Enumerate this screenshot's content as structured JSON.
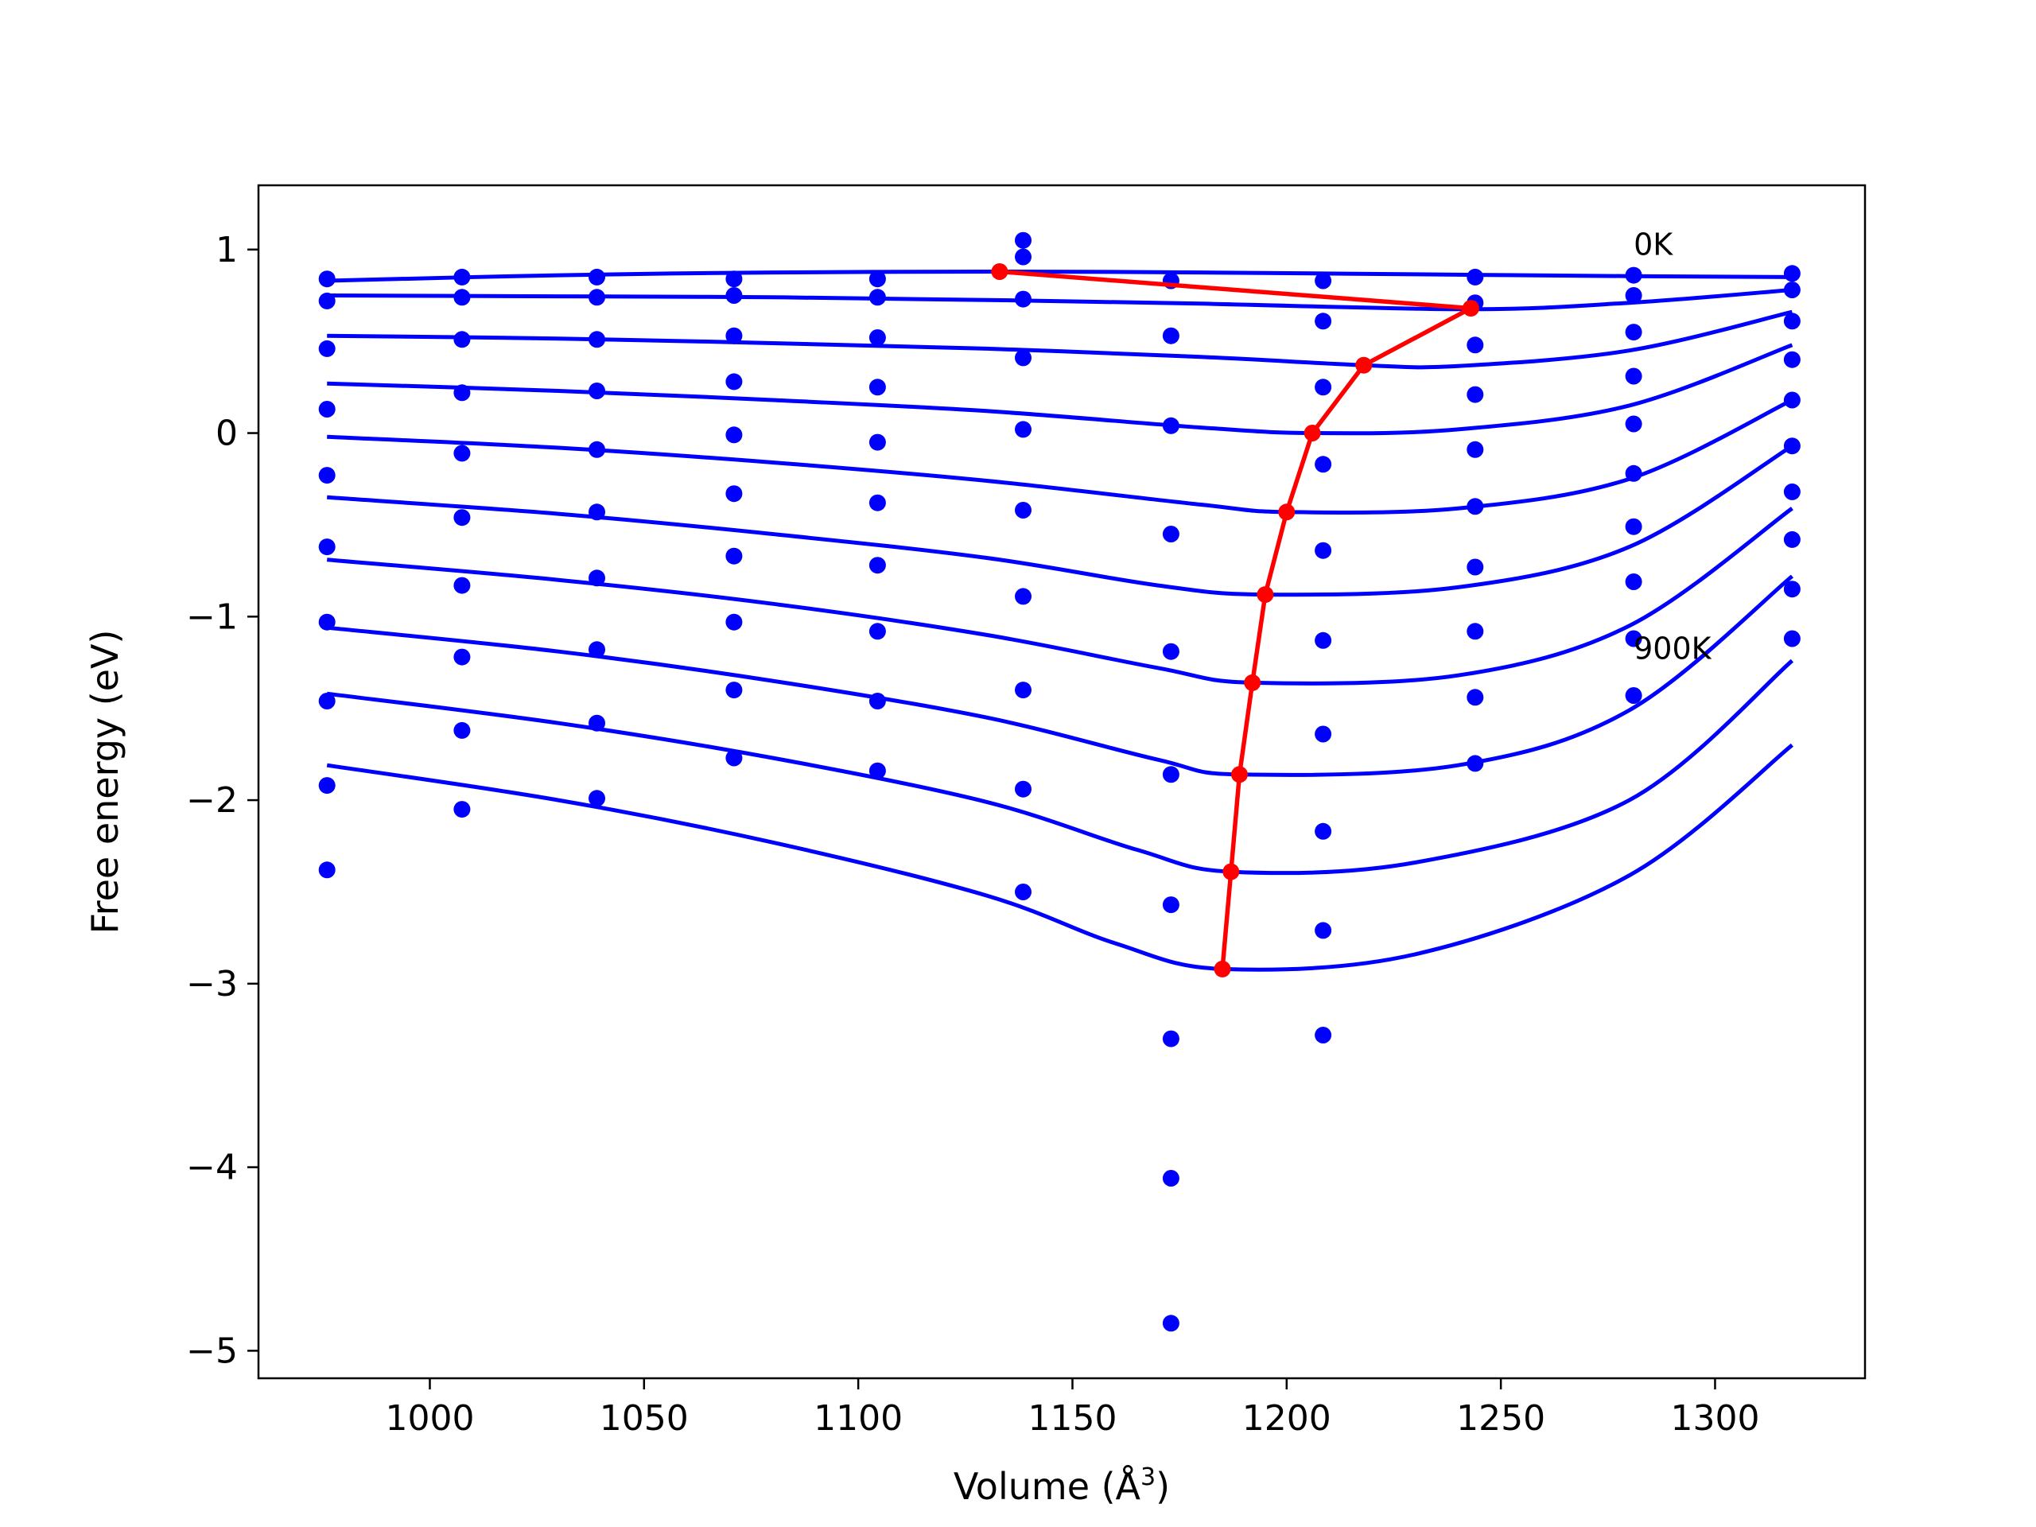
{
  "chart_data": {
    "type": "scatter",
    "title": "",
    "xlabel": "Volume (Å",
    "xlabel_sup": "3",
    "xlabel_close": ")",
    "ylabel": "Free energy (eV)",
    "xlim": [
      960,
      1335
    ],
    "ylim": [
      -5.15,
      1.35
    ],
    "x_ticks": [
      1000,
      1050,
      1100,
      1150,
      1200,
      1250,
      1300
    ],
    "y_ticks": [
      1,
      0,
      -1,
      -2,
      -3,
      -4,
      -5
    ],
    "x_tick_labels": [
      "1000",
      "1050",
      "1100",
      "1150",
      "1200",
      "1250",
      "1300"
    ],
    "y_tick_labels": [
      "1",
      "0",
      "−1",
      "−2",
      "−3",
      "−4",
      "−5"
    ],
    "grid": false,
    "legend": "none",
    "colors": {
      "points": "#0000ff",
      "fits": "#0000ff",
      "minima": "#ff0000",
      "frame": "#000000"
    },
    "annotations": [
      {
        "text": "0K",
        "x": 1281,
        "y": 0.97
      },
      {
        "text": "900K",
        "x": 1281,
        "y": -1.23
      }
    ],
    "volumes": [
      976,
      1007.5,
      1039,
      1071,
      1104.5,
      1138.5,
      1173,
      1208.5,
      1244,
      1281,
      1318
    ],
    "scatter_points": [
      [
        976,
        0.84
      ],
      [
        976,
        0.72
      ],
      [
        976,
        0.46
      ],
      [
        976,
        0.13
      ],
      [
        976,
        -0.23
      ],
      [
        976,
        -0.62
      ],
      [
        976,
        -1.03
      ],
      [
        976,
        -1.46
      ],
      [
        976,
        -1.92
      ],
      [
        976,
        -2.38
      ],
      [
        1007.5,
        0.85
      ],
      [
        1007.5,
        0.74
      ],
      [
        1007.5,
        0.51
      ],
      [
        1007.5,
        0.22
      ],
      [
        1007.5,
        -0.11
      ],
      [
        1007.5,
        -0.46
      ],
      [
        1007.5,
        -0.83
      ],
      [
        1007.5,
        -1.22
      ],
      [
        1007.5,
        -1.62
      ],
      [
        1007.5,
        -2.05
      ],
      [
        1039,
        0.85
      ],
      [
        1039,
        0.74
      ],
      [
        1039,
        0.51
      ],
      [
        1039,
        0.23
      ],
      [
        1039,
        -0.09
      ],
      [
        1039,
        -0.43
      ],
      [
        1039,
        -0.79
      ],
      [
        1039,
        -1.18
      ],
      [
        1039,
        -1.58
      ],
      [
        1039,
        -1.99
      ],
      [
        1071,
        0.84
      ],
      [
        1071,
        0.75
      ],
      [
        1071,
        0.53
      ],
      [
        1071,
        0.28
      ],
      [
        1071,
        -0.01
      ],
      [
        1071,
        -0.33
      ],
      [
        1071,
        -0.67
      ],
      [
        1071,
        -1.03
      ],
      [
        1071,
        -1.4
      ],
      [
        1071,
        -1.77
      ],
      [
        1104.5,
        0.84
      ],
      [
        1104.5,
        0.74
      ],
      [
        1104.5,
        0.52
      ],
      [
        1104.5,
        0.25
      ],
      [
        1104.5,
        -0.05
      ],
      [
        1104.5,
        -0.38
      ],
      [
        1104.5,
        -0.72
      ],
      [
        1104.5,
        -1.08
      ],
      [
        1104.5,
        -1.46
      ],
      [
        1104.5,
        -1.84
      ],
      [
        1138.5,
        1.05
      ],
      [
        1138.5,
        0.96
      ],
      [
        1138.5,
        0.73
      ],
      [
        1138.5,
        0.41
      ],
      [
        1138.5,
        0.02
      ],
      [
        1138.5,
        -0.42
      ],
      [
        1138.5,
        -0.89
      ],
      [
        1138.5,
        -1.4
      ],
      [
        1138.5,
        -1.94
      ],
      [
        1138.5,
        -2.5
      ],
      [
        1173,
        0.83
      ],
      [
        1173,
        0.53
      ],
      [
        1173,
        0.04
      ],
      [
        1173,
        -0.55
      ],
      [
        1173,
        -1.19
      ],
      [
        1173,
        -1.86
      ],
      [
        1173,
        -2.57
      ],
      [
        1173,
        -3.3
      ],
      [
        1173,
        -4.06
      ],
      [
        1173,
        -4.85
      ],
      [
        1208.5,
        0.83
      ],
      [
        1208.5,
        0.61
      ],
      [
        1208.5,
        0.25
      ],
      [
        1208.5,
        -0.17
      ],
      [
        1208.5,
        -0.64
      ],
      [
        1208.5,
        -1.13
      ],
      [
        1208.5,
        -1.64
      ],
      [
        1208.5,
        -2.17
      ],
      [
        1208.5,
        -2.71
      ],
      [
        1208.5,
        -3.28
      ],
      [
        1244,
        0.85
      ],
      [
        1244,
        0.71
      ],
      [
        1244,
        0.48
      ],
      [
        1244,
        0.21
      ],
      [
        1244,
        -0.09
      ],
      [
        1244,
        -0.4
      ],
      [
        1244,
        -0.73
      ],
      [
        1244,
        -1.08
      ],
      [
        1244,
        -1.44
      ],
      [
        1244,
        -1.8
      ],
      [
        1281,
        0.86
      ],
      [
        1281,
        0.75
      ],
      [
        1281,
        0.55
      ],
      [
        1281,
        0.31
      ],
      [
        1281,
        0.05
      ],
      [
        1281,
        -0.22
      ],
      [
        1281,
        -0.51
      ],
      [
        1281,
        -0.81
      ],
      [
        1281,
        -1.12
      ],
      [
        1281,
        -1.43
      ],
      [
        1318,
        0.87
      ],
      [
        1318,
        0.78
      ],
      [
        1318,
        0.61
      ],
      [
        1318,
        0.4
      ],
      [
        1318,
        0.18
      ],
      [
        1318,
        -0.07
      ],
      [
        1318,
        -0.32
      ],
      [
        1318,
        -0.58
      ],
      [
        1318,
        -0.85
      ],
      [
        1318,
        -1.12
      ]
    ],
    "fit_curves": [
      {
        "points": [
          [
            976,
            0.83
          ],
          [
            1030,
            0.86
          ],
          [
            1080,
            0.875
          ],
          [
            1133,
            0.88
          ],
          [
            1180,
            0.875
          ],
          [
            1230,
            0.865
          ],
          [
            1280,
            0.855
          ],
          [
            1318,
            0.85
          ]
        ]
      },
      {
        "points": [
          [
            976,
            0.75
          ],
          [
            1030,
            0.745
          ],
          [
            1080,
            0.74
          ],
          [
            1130,
            0.725
          ],
          [
            1180,
            0.705
          ],
          [
            1243,
            0.675
          ],
          [
            1280,
            0.71
          ],
          [
            1318,
            0.78
          ]
        ]
      },
      {
        "points": [
          [
            976,
            0.53
          ],
          [
            1030,
            0.515
          ],
          [
            1080,
            0.49
          ],
          [
            1130,
            0.46
          ],
          [
            1180,
            0.415
          ],
          [
            1218,
            0.37
          ],
          [
            1240,
            0.365
          ],
          [
            1280,
            0.45
          ],
          [
            1318,
            0.66
          ]
        ]
      },
      {
        "points": [
          [
            976,
            0.27
          ],
          [
            1030,
            0.23
          ],
          [
            1080,
            0.18
          ],
          [
            1130,
            0.12
          ],
          [
            1180,
            0.03
          ],
          [
            1206,
            0.0
          ],
          [
            1240,
            0.02
          ],
          [
            1280,
            0.15
          ],
          [
            1318,
            0.48
          ]
        ]
      },
      {
        "points": [
          [
            976,
            -0.02
          ],
          [
            1030,
            -0.08
          ],
          [
            1080,
            -0.16
          ],
          [
            1130,
            -0.26
          ],
          [
            1180,
            -0.39
          ],
          [
            1200,
            -0.43
          ],
          [
            1240,
            -0.41
          ],
          [
            1280,
            -0.25
          ],
          [
            1318,
            0.18
          ]
        ]
      },
      {
        "points": [
          [
            976,
            -0.35
          ],
          [
            1030,
            -0.44
          ],
          [
            1080,
            -0.55
          ],
          [
            1130,
            -0.68
          ],
          [
            1170,
            -0.83
          ],
          [
            1195,
            -0.88
          ],
          [
            1240,
            -0.84
          ],
          [
            1280,
            -0.62
          ],
          [
            1318,
            -0.07
          ]
        ]
      },
      {
        "points": [
          [
            976,
            -0.69
          ],
          [
            1030,
            -0.8
          ],
          [
            1080,
            -0.93
          ],
          [
            1130,
            -1.1
          ],
          [
            1170,
            -1.28
          ],
          [
            1192,
            -1.36
          ],
          [
            1240,
            -1.32
          ],
          [
            1280,
            -1.05
          ],
          [
            1318,
            -0.41
          ]
        ]
      },
      {
        "points": [
          [
            976,
            -1.06
          ],
          [
            1030,
            -1.19
          ],
          [
            1080,
            -1.35
          ],
          [
            1130,
            -1.55
          ],
          [
            1170,
            -1.78
          ],
          [
            1189,
            -1.86
          ],
          [
            1240,
            -1.81
          ],
          [
            1280,
            -1.51
          ],
          [
            1318,
            -0.78
          ]
        ]
      },
      {
        "points": [
          [
            976,
            -1.42
          ],
          [
            1030,
            -1.58
          ],
          [
            1080,
            -1.77
          ],
          [
            1130,
            -2.01
          ],
          [
            1165,
            -2.27
          ],
          [
            1187,
            -2.39
          ],
          [
            1230,
            -2.34
          ],
          [
            1280,
            -2.0
          ],
          [
            1318,
            -1.24
          ]
        ]
      },
      {
        "points": [
          [
            976,
            -1.81
          ],
          [
            1030,
            -2.0
          ],
          [
            1080,
            -2.23
          ],
          [
            1130,
            -2.52
          ],
          [
            1160,
            -2.78
          ],
          [
            1185,
            -2.92
          ],
          [
            1230,
            -2.84
          ],
          [
            1280,
            -2.41
          ],
          [
            1318,
            -1.7
          ]
        ]
      }
    ],
    "minima_line": {
      "points": [
        [
          1133,
          0.88
        ],
        [
          1243,
          0.68
        ],
        [
          1218,
          0.37
        ],
        [
          1206,
          0.0
        ],
        [
          1200,
          -0.43
        ],
        [
          1195,
          -0.88
        ],
        [
          1192,
          -1.36
        ],
        [
          1189,
          -1.86
        ],
        [
          1187,
          -2.39
        ],
        [
          1185,
          -2.92
        ]
      ]
    }
  }
}
